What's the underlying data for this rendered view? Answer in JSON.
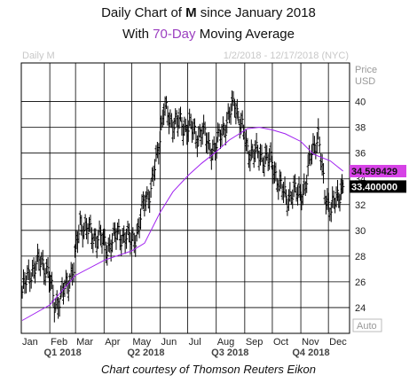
{
  "header": {
    "line1_pre": "Daily Chart of ",
    "ticker": "M",
    "line1_post": " since January 2018",
    "line2_pre": "With ",
    "ma_period": "70-Day",
    "line2_post": " Moving Average"
  },
  "footer": {
    "credit": "Chart courtesy of Thomson Reuters Eikon"
  },
  "colors": {
    "ma": "#a020f0",
    "ma_box": "#d642e6",
    "price": "#000000",
    "grid": "#000000"
  },
  "chart_data": {
    "type": "line",
    "watermark_symbol": "Daily M",
    "date_range": "1/2/2018 - 12/17/2018 (NYC)",
    "price_axis_label": "Price",
    "currency_label": "USD",
    "auto_label": "Auto",
    "ylim": [
      22,
      43
    ],
    "y_ticks": [
      24,
      26,
      28,
      30,
      32,
      34,
      36,
      38,
      40
    ],
    "months": [
      "Jan",
      "Feb",
      "Mar",
      "Apr",
      "May",
      "Jun",
      "Jul",
      "Aug",
      "Sep",
      "Oct",
      "Nov",
      "Dec"
    ],
    "quarters": [
      "Q1 2018",
      "Q2 2018",
      "Q3 2018",
      "Q4 2018"
    ],
    "series": [
      {
        "name": "M",
        "style": "daily-bars",
        "x": [
          "2018-01-02",
          "2018-01-09",
          "2018-01-16",
          "2018-01-23",
          "2018-01-30",
          "2018-02-06",
          "2018-02-13",
          "2018-02-20",
          "2018-02-27",
          "2018-03-06",
          "2018-03-13",
          "2018-03-20",
          "2018-03-27",
          "2018-04-03",
          "2018-04-10",
          "2018-04-17",
          "2018-04-24",
          "2018-05-01",
          "2018-05-08",
          "2018-05-15",
          "2018-05-22",
          "2018-05-29",
          "2018-06-05",
          "2018-06-12",
          "2018-06-19",
          "2018-06-26",
          "2018-07-03",
          "2018-07-10",
          "2018-07-17",
          "2018-07-24",
          "2018-07-31",
          "2018-08-07",
          "2018-08-14",
          "2018-08-21",
          "2018-08-28",
          "2018-09-04",
          "2018-09-11",
          "2018-09-18",
          "2018-09-25",
          "2018-10-02",
          "2018-10-09",
          "2018-10-16",
          "2018-10-23",
          "2018-10-30",
          "2018-11-06",
          "2018-11-13",
          "2018-11-20",
          "2018-11-27",
          "2018-12-04",
          "2018-12-11",
          "2018-12-17"
        ],
        "values": [
          25.2,
          26.5,
          27.2,
          27.6,
          26.8,
          24.2,
          24.8,
          25.8,
          27.2,
          30.5,
          30.2,
          29.4,
          29.6,
          28.6,
          29.2,
          29.8,
          29.4,
          29.3,
          29.8,
          32.5,
          33.0,
          36.0,
          39.5,
          38.4,
          38.5,
          38.0,
          38.2,
          37.2,
          37.8,
          36.5,
          36.3,
          37.7,
          38.6,
          40.0,
          38.2,
          36.2,
          36.0,
          35.8,
          35.6,
          35.0,
          33.4,
          32.6,
          32.8,
          33.0,
          33.2,
          36.4,
          37.2,
          33.0,
          31.5,
          32.7,
          33.4
        ]
      },
      {
        "name": "70-Day MA",
        "x": [
          "2018-01-02",
          "2018-02-01",
          "2018-03-01",
          "2018-04-02",
          "2018-05-01",
          "2018-05-15",
          "2018-06-01",
          "2018-06-15",
          "2018-07-02",
          "2018-07-16",
          "2018-08-01",
          "2018-08-15",
          "2018-09-04",
          "2018-09-17",
          "2018-10-01",
          "2018-10-15",
          "2018-11-01",
          "2018-11-15",
          "2018-12-03",
          "2018-12-17"
        ],
        "values": [
          23.0,
          24.2,
          26.5,
          27.7,
          28.4,
          29.0,
          31.4,
          33.0,
          34.3,
          35.2,
          36.1,
          37.0,
          37.9,
          38.0,
          37.8,
          37.5,
          36.9,
          35.9,
          35.4,
          34.6
        ]
      }
    ],
    "last_values": {
      "ma": "34.599429",
      "price": "33.400000"
    }
  }
}
